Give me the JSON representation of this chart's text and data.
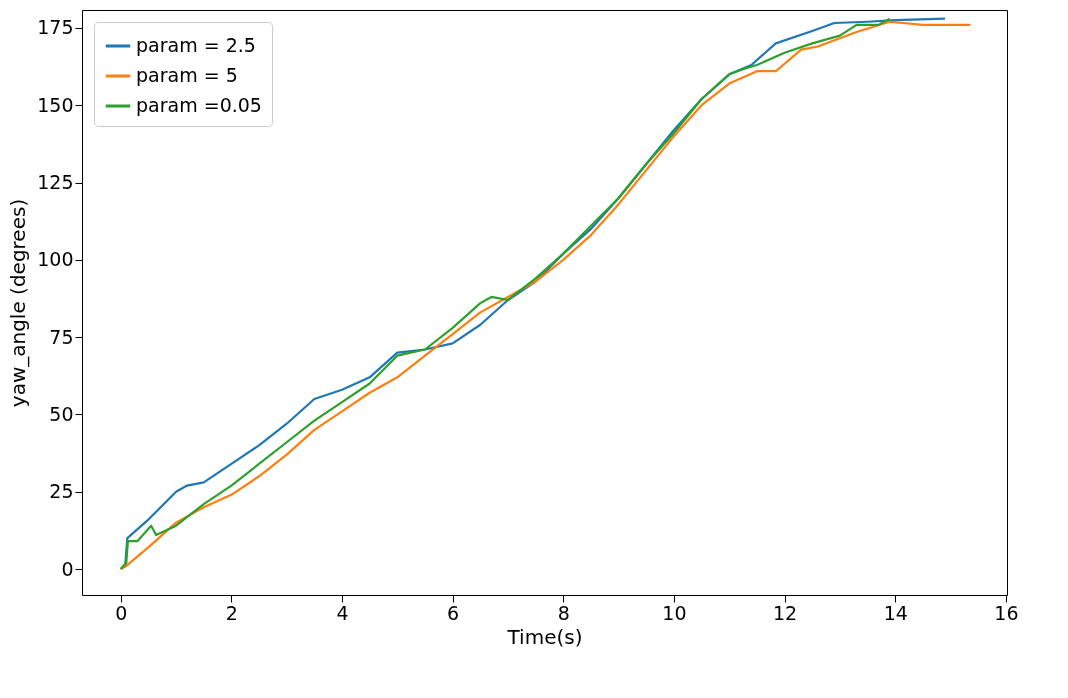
{
  "chart_data": {
    "type": "line",
    "xlabel": "Time(s)",
    "ylabel": "yaw_angle (degrees)",
    "xlim": [
      -0.7,
      16.02
    ],
    "ylim": [
      -8.4,
      180.8
    ],
    "xticks": [
      0,
      2,
      4,
      6,
      8,
      10,
      12,
      14,
      16
    ],
    "yticks": [
      0,
      25,
      50,
      75,
      100,
      125,
      150,
      175
    ],
    "grid": false,
    "legend": "top left",
    "series": [
      {
        "name": "param = 2.5",
        "color": "#1f77b4",
        "x": [
          0,
          0.08,
          0.12,
          0.5,
          1.0,
          1.2,
          1.5,
          2.0,
          2.5,
          3.0,
          3.5,
          4.0,
          4.5,
          5.0,
          5.5,
          6.0,
          6.5,
          7.0,
          7.5,
          8.0,
          8.5,
          9.0,
          9.5,
          10,
          10.5,
          11,
          11.4,
          11.84,
          12.5,
          12.9,
          13.5,
          14,
          14.9
        ],
        "values": [
          0,
          1,
          10,
          16,
          25,
          27,
          28,
          34,
          40,
          47,
          55,
          58,
          62,
          70,
          71,
          73,
          79,
          87,
          93,
          102,
          110,
          120,
          131,
          142,
          152,
          160,
          163,
          170,
          174,
          176.6,
          177,
          177.5,
          178
        ]
      },
      {
        "name": "param = 5",
        "color": "#ff7f0e",
        "x": [
          0,
          0.1,
          0.5,
          1.0,
          1.5,
          2.0,
          2.5,
          3.0,
          3.5,
          4.0,
          4.5,
          5.0,
          5.5,
          6.0,
          6.5,
          7.0,
          7.5,
          8.0,
          8.5,
          9.0,
          9.5,
          10,
          10.5,
          11,
          11.5,
          11.84,
          12.3,
          12.6,
          13.3,
          13.9,
          14.5,
          15.36
        ],
        "values": [
          0,
          1,
          7,
          15,
          20,
          24,
          30,
          37,
          45,
          51,
          57,
          62,
          69,
          76,
          83,
          88,
          93,
          100,
          108,
          118,
          129,
          140,
          150,
          157,
          161,
          161,
          168,
          169,
          173.7,
          177,
          176,
          176
        ]
      },
      {
        "name": "param =0.05",
        "color": "#2ca02c",
        "x": [
          0,
          0.1,
          0.13,
          0.3,
          0.55,
          0.64,
          1.0,
          1.5,
          2.0,
          2.5,
          3.0,
          3.5,
          4.0,
          4.5,
          5.0,
          5.5,
          6.0,
          6.5,
          6.7,
          7.0,
          7.5,
          8.0,
          8.5,
          9.0,
          9.5,
          10,
          10.5,
          11,
          11.3,
          11.5,
          12,
          12.5,
          13,
          13.3,
          13.7,
          13.9
        ],
        "values": [
          0,
          2,
          9,
          9,
          14,
          11,
          14,
          21,
          27,
          34,
          41,
          48,
          54,
          60,
          69,
          71,
          78,
          86,
          88,
          87,
          94,
          102,
          111,
          120,
          131,
          141,
          152,
          160,
          162,
          163,
          167,
          170,
          172.5,
          176,
          176,
          178
        ]
      }
    ]
  }
}
